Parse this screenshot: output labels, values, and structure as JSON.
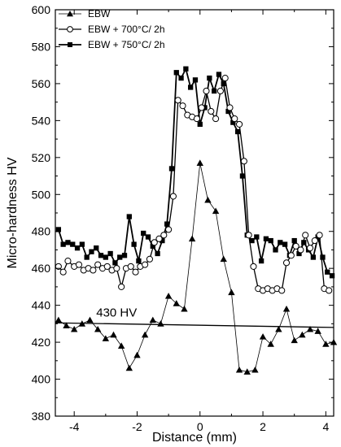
{
  "chart_data": {
    "type": "line",
    "xlabel": "Distance (mm)",
    "ylabel": "Micro-hardness HV",
    "xlim": [
      -4.6,
      4.25
    ],
    "ylim": [
      380,
      600
    ],
    "x_ticks": [
      "-4",
      "-2",
      "0",
      "2",
      "4"
    ],
    "y_ticks": [
      "380",
      "400",
      "420",
      "440",
      "460",
      "480",
      "500",
      "520",
      "540",
      "560",
      "580",
      "600"
    ],
    "legend_position": "top-left",
    "annotations": [
      {
        "text": "430 HV",
        "x": -3.3,
        "y": 434
      }
    ],
    "reference_line": {
      "x0": -4.6,
      "y0": 430.5,
      "x1": 4.25,
      "y1": 428
    },
    "series": [
      {
        "name": "EBW",
        "marker": "triangle",
        "line_width": 0.8,
        "color": "#000000",
        "x": [
          -4.5,
          -4.25,
          -4.0,
          -3.75,
          -3.5,
          -3.25,
          -3.0,
          -2.75,
          -2.5,
          -2.25,
          -2.0,
          -1.75,
          -1.5,
          -1.25,
          -1.0,
          -0.75,
          -0.5,
          -0.25,
          0.0,
          0.25,
          0.5,
          0.75,
          1.0,
          1.25,
          1.5,
          1.75,
          2.0,
          2.25,
          2.5,
          2.75,
          3.0,
          3.25,
          3.5,
          3.75,
          4.0,
          4.25
        ],
        "y": [
          432,
          429,
          427,
          430,
          432,
          427,
          422,
          424,
          418,
          406,
          413,
          424,
          432,
          430,
          445,
          441,
          438,
          476,
          517,
          497,
          491,
          465,
          447,
          405,
          404,
          405,
          423,
          419,
          427,
          438,
          421,
          424,
          427,
          426,
          419,
          420
        ]
      },
      {
        "name": "EBW + 700°C/ 2h",
        "marker": "circle",
        "line_width": 1.3,
        "color": "#000000",
        "x": [
          -4.5,
          -4.35,
          -4.2,
          -4.0,
          -3.85,
          -3.7,
          -3.55,
          -3.4,
          -3.25,
          -3.1,
          -2.95,
          -2.8,
          -2.65,
          -2.5,
          -2.35,
          -2.2,
          -2.05,
          -1.9,
          -1.75,
          -1.6,
          -1.45,
          -1.3,
          -1.15,
          -1.0,
          -0.85,
          -0.7,
          -0.55,
          -0.4,
          -0.25,
          -0.1,
          0.05,
          0.2,
          0.35,
          0.5,
          0.65,
          0.8,
          0.95,
          1.1,
          1.25,
          1.4,
          1.55,
          1.7,
          1.85,
          2.0,
          2.15,
          2.3,
          2.45,
          2.6,
          2.75,
          2.9,
          3.05,
          3.2,
          3.35,
          3.5,
          3.65,
          3.8,
          3.95,
          4.1
        ],
        "y": [
          461,
          458,
          464,
          461,
          462,
          459,
          460,
          459,
          462,
          460,
          461,
          459,
          460,
          450,
          460,
          461,
          458,
          461,
          462,
          465,
          474,
          476,
          478,
          481,
          499,
          551,
          548,
          543,
          542,
          541,
          547,
          556,
          545,
          541,
          556,
          563,
          547,
          541,
          538,
          518,
          478,
          461,
          449,
          448,
          449,
          448,
          449,
          448,
          463,
          467,
          472,
          470,
          478,
          471,
          475,
          478,
          449,
          448
        ]
      },
      {
        "name": "EBW + 750°C/ 2h",
        "marker": "square",
        "line_width": 1.8,
        "color": "#000000",
        "x": [
          -4.5,
          -4.35,
          -4.2,
          -4.05,
          -3.9,
          -3.75,
          -3.6,
          -3.45,
          -3.3,
          -3.15,
          -3.0,
          -2.85,
          -2.7,
          -2.55,
          -2.4,
          -2.25,
          -2.1,
          -1.95,
          -1.8,
          -1.65,
          -1.5,
          -1.35,
          -1.2,
          -1.05,
          -0.9,
          -0.75,
          -0.6,
          -0.45,
          -0.3,
          -0.15,
          0.0,
          0.15,
          0.3,
          0.45,
          0.6,
          0.75,
          0.9,
          1.05,
          1.2,
          1.35,
          1.5,
          1.65,
          1.8,
          1.95,
          2.1,
          2.25,
          2.4,
          2.55,
          2.7,
          2.85,
          3.0,
          3.15,
          3.3,
          3.45,
          3.6,
          3.75,
          3.9,
          4.05,
          4.2
        ],
        "y": [
          481,
          473,
          474,
          473,
          471,
          473,
          466,
          469,
          471,
          467,
          466,
          468,
          463,
          466,
          467,
          488,
          473,
          464,
          479,
          477,
          472,
          468,
          475,
          484,
          514,
          566,
          563,
          568,
          558,
          562,
          538,
          547,
          563,
          556,
          565,
          560,
          545,
          539,
          534,
          510,
          478,
          475,
          477,
          464,
          476,
          475,
          470,
          474,
          473,
          467,
          475,
          468,
          474,
          470,
          466,
          477,
          466,
          458,
          456
        ]
      }
    ]
  }
}
